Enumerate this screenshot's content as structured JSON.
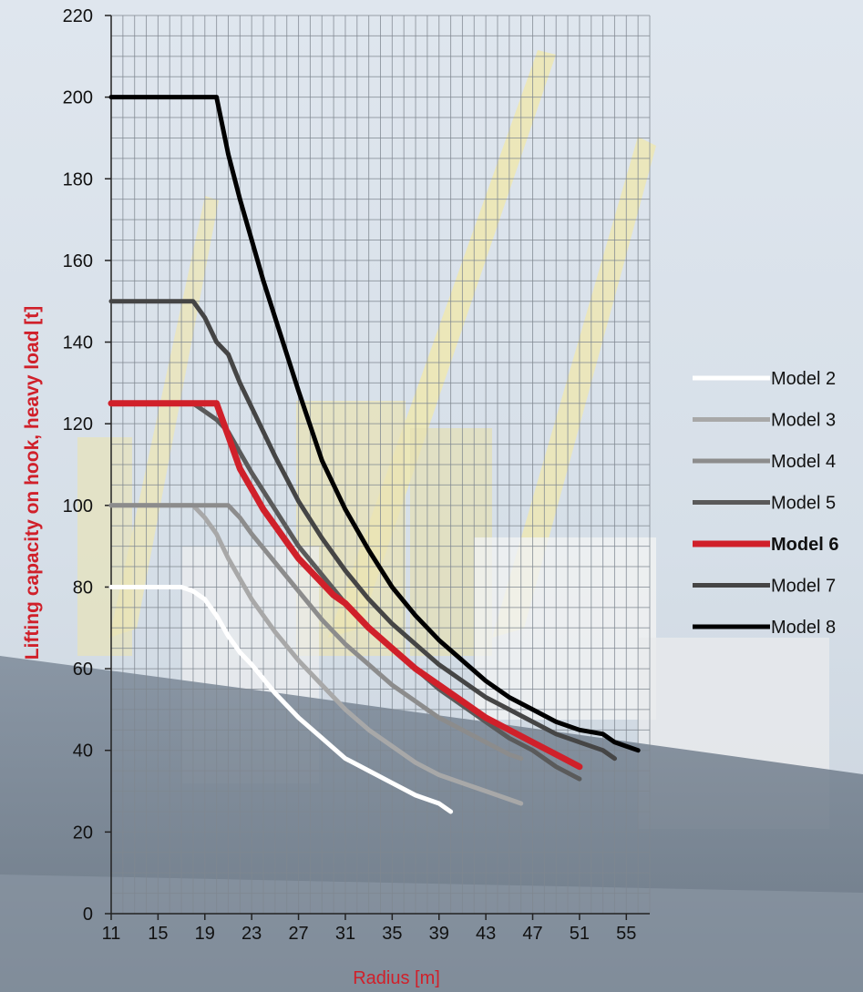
{
  "chart_data": {
    "type": "line",
    "title": "",
    "xlabel": "Radius [m]",
    "ylabel": "Lifting capacity on hook, heavy load [t]",
    "xlim": [
      11,
      57
    ],
    "ylim": [
      0,
      220
    ],
    "x_ticks": [
      11,
      15,
      19,
      23,
      27,
      31,
      35,
      39,
      43,
      47,
      51,
      55
    ],
    "y_ticks": [
      0,
      20,
      40,
      60,
      80,
      100,
      120,
      140,
      160,
      180,
      200,
      220
    ],
    "grid": true,
    "legend_position": "right",
    "series": [
      {
        "name": "Model 2",
        "color": "#ffffff",
        "bold": false,
        "x": [
          11,
          17,
          18,
          19,
          20,
          21,
          22,
          23,
          25,
          27,
          29,
          31,
          33,
          35,
          37,
          39,
          40
        ],
        "y": [
          80,
          80,
          79,
          77,
          73,
          68,
          64,
          61,
          54,
          48,
          43,
          38,
          35,
          32,
          29,
          27,
          25
        ]
      },
      {
        "name": "Model 3",
        "color": "#a8a8a8",
        "bold": false,
        "x": [
          11,
          18,
          19,
          20,
          21,
          22,
          23,
          25,
          27,
          29,
          31,
          33,
          35,
          37,
          39,
          41,
          43,
          45,
          46
        ],
        "y": [
          100,
          100,
          97,
          93,
          87,
          82,
          77,
          69,
          62,
          56,
          50,
          45,
          41,
          37,
          34,
          32,
          30,
          28,
          27
        ]
      },
      {
        "name": "Model 4",
        "color": "#8c8c8c",
        "bold": false,
        "x": [
          11,
          21,
          22,
          23,
          25,
          27,
          29,
          31,
          33,
          35,
          37,
          39,
          41,
          43,
          45,
          46
        ],
        "y": [
          100,
          100,
          97,
          93,
          86,
          79,
          72,
          66,
          61,
          56,
          52,
          48,
          45,
          42,
          39,
          38
        ]
      },
      {
        "name": "Model 5",
        "color": "#5a5a5a",
        "bold": false,
        "x": [
          11,
          18,
          19,
          20,
          21,
          22,
          23,
          25,
          27,
          29,
          31,
          33,
          35,
          37,
          39,
          41,
          43,
          45,
          47,
          49,
          51
        ],
        "y": [
          125,
          125,
          123,
          121,
          118,
          113,
          108,
          99,
          90,
          83,
          76,
          70,
          65,
          60,
          55,
          51,
          47,
          43,
          40,
          36,
          33
        ]
      },
      {
        "name": "Model 6",
        "color": "#d0202a",
        "bold": true,
        "x": [
          11,
          20,
          21,
          22,
          23,
          24,
          25,
          26,
          27,
          28,
          29,
          30,
          31,
          33,
          35,
          37,
          39,
          41,
          43,
          45,
          47,
          49,
          51
        ],
        "y": [
          125,
          125,
          117,
          109,
          104,
          99,
          95,
          91,
          87,
          84,
          81,
          78,
          76,
          70,
          65,
          60,
          56,
          52,
          48,
          45,
          42,
          39,
          36
        ]
      },
      {
        "name": "Model 7",
        "color": "#454545",
        "bold": false,
        "x": [
          11,
          18,
          19,
          20,
          21,
          22,
          23,
          25,
          27,
          29,
          31,
          33,
          35,
          37,
          39,
          41,
          43,
          45,
          47,
          49,
          51,
          53,
          54
        ],
        "y": [
          150,
          150,
          146,
          140,
          137,
          130,
          124,
          112,
          101,
          92,
          84,
          77,
          71,
          66,
          61,
          57,
          53,
          50,
          47,
          44,
          42,
          40,
          38
        ]
      },
      {
        "name": "Model 8",
        "color": "#000000",
        "bold": false,
        "x": [
          11,
          20,
          21,
          22,
          23,
          24,
          25,
          27,
          29,
          31,
          33,
          35,
          37,
          39,
          41,
          43,
          45,
          47,
          49,
          51,
          53,
          54,
          55,
          56
        ],
        "y": [
          200,
          200,
          186,
          175,
          165,
          155,
          146,
          128,
          111,
          99,
          89,
          80,
          73,
          67,
          62,
          57,
          53,
          50,
          47,
          45,
          44,
          42,
          41,
          40
        ]
      }
    ]
  }
}
